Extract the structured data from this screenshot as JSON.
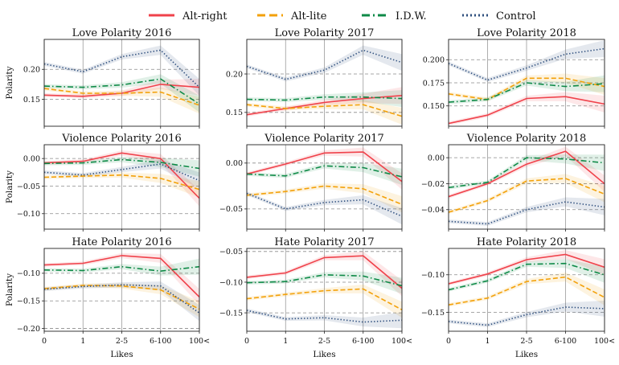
{
  "legend": [
    {
      "name": "Alt-right",
      "color": "#f0424b",
      "dash": "solid"
    },
    {
      "name": "Alt-lite",
      "color": "#f3a10a",
      "dash": "dashed"
    },
    {
      "name": "I.D.W.",
      "color": "#0e8a47",
      "dash": "dashdot"
    },
    {
      "name": "Control",
      "color": "#2e4f7e",
      "dash": "dotted"
    }
  ],
  "grid": "horizontal dashed at y ticks, vertical solid at x ticks",
  "chart_data": [
    {
      "type": "line",
      "title": "Love Polarity 2016",
      "ylabel": "Polarity",
      "xlabel": "",
      "categories": [
        "0",
        "1",
        "2-5",
        "6-100",
        "100<"
      ],
      "ylim": [
        0.105,
        0.25
      ],
      "yticks": [
        0.15,
        0.2
      ],
      "ytick_labels": [
        "0.15",
        "0.20"
      ],
      "series": [
        {
          "name": "Alt-right",
          "values": [
            0.157,
            0.155,
            0.16,
            0.175,
            0.17
          ]
        },
        {
          "name": "Alt-lite",
          "values": [
            0.168,
            0.16,
            0.16,
            0.162,
            0.14
          ]
        },
        {
          "name": "I.D.W.",
          "values": [
            0.172,
            0.17,
            0.174,
            0.184,
            0.142
          ]
        },
        {
          "name": "Control",
          "values": [
            0.209,
            0.196,
            0.221,
            0.232,
            0.17
          ]
        }
      ]
    },
    {
      "type": "line",
      "title": "Love Polarity 2017",
      "ylabel": "",
      "xlabel": "",
      "categories": [
        "0",
        "1",
        "2-5",
        "6-100",
        "100<"
      ],
      "ylim": [
        0.132,
        0.245
      ],
      "yticks": [
        0.15,
        0.2
      ],
      "ytick_labels": [
        "0.15",
        "0.20"
      ],
      "series": [
        {
          "name": "Alt-right",
          "values": [
            0.147,
            0.155,
            0.163,
            0.168,
            0.172
          ]
        },
        {
          "name": "Alt-lite",
          "values": [
            0.16,
            0.155,
            0.158,
            0.16,
            0.145
          ]
        },
        {
          "name": "I.D.W.",
          "values": [
            0.167,
            0.166,
            0.17,
            0.17,
            0.168
          ]
        },
        {
          "name": "Control",
          "values": [
            0.21,
            0.193,
            0.205,
            0.231,
            0.215
          ]
        }
      ]
    },
    {
      "type": "line",
      "title": "Love Polarity 2018",
      "ylabel": "",
      "xlabel": "",
      "categories": [
        "0",
        "1",
        "2-5",
        "6-100",
        "100<"
      ],
      "ylim": [
        0.128,
        0.222
      ],
      "yticks": [
        0.15,
        0.175,
        0.2
      ],
      "ytick_labels": [
        "0.150",
        "0.175",
        "0.200"
      ],
      "series": [
        {
          "name": "Alt-right",
          "values": [
            0.131,
            0.14,
            0.158,
            0.16,
            0.152
          ]
        },
        {
          "name": "Alt-lite",
          "values": [
            0.163,
            0.157,
            0.18,
            0.18,
            0.171
          ]
        },
        {
          "name": "I.D.W.",
          "values": [
            0.154,
            0.157,
            0.175,
            0.171,
            0.174
          ]
        },
        {
          "name": "Control",
          "values": [
            0.196,
            0.178,
            0.191,
            0.206,
            0.212
          ]
        }
      ]
    },
    {
      "type": "line",
      "title": "Violence Polarity 2016",
      "ylabel": "Polarity",
      "xlabel": "",
      "categories": [
        "0",
        "1",
        "2-5",
        "6-100",
        "100<"
      ],
      "ylim": [
        -0.128,
        0.025
      ],
      "yticks": [
        -0.1,
        -0.05,
        0.0
      ],
      "ytick_labels": [
        "−0.10",
        "−0.05",
        "0.00"
      ],
      "series": [
        {
          "name": "Alt-right",
          "values": [
            -0.008,
            -0.005,
            0.01,
            0.0,
            -0.072
          ]
        },
        {
          "name": "Alt-lite",
          "values": [
            -0.034,
            -0.032,
            -0.03,
            -0.036,
            -0.056
          ]
        },
        {
          "name": "I.D.W.",
          "values": [
            -0.009,
            -0.008,
            -0.002,
            -0.007,
            -0.018
          ]
        },
        {
          "name": "Control",
          "values": [
            -0.025,
            -0.03,
            -0.02,
            -0.01,
            -0.04
          ]
        }
      ]
    },
    {
      "type": "line",
      "title": "Violence Polarity 2017",
      "ylabel": "",
      "xlabel": "",
      "categories": [
        "0",
        "1",
        "2-5",
        "6-100",
        "100<"
      ],
      "ylim": [
        -0.072,
        0.02
      ],
      "yticks": [
        -0.05,
        0.0
      ],
      "ytick_labels": [
        "−0.05",
        "0.00"
      ],
      "series": [
        {
          "name": "Alt-right",
          "values": [
            -0.012,
            -0.001,
            0.011,
            0.012,
            -0.02
          ]
        },
        {
          "name": "Alt-lite",
          "values": [
            -0.035,
            -0.031,
            -0.025,
            -0.028,
            -0.045
          ]
        },
        {
          "name": "I.D.W.",
          "values": [
            -0.012,
            -0.014,
            -0.003,
            -0.005,
            -0.015
          ]
        },
        {
          "name": "Control",
          "values": [
            -0.033,
            -0.05,
            -0.043,
            -0.04,
            -0.058
          ]
        }
      ]
    },
    {
      "type": "line",
      "title": "Violence Polarity 2018",
      "ylabel": "",
      "xlabel": "",
      "categories": [
        "0",
        "1",
        "2-5",
        "6-100",
        "100<"
      ],
      "ylim": [
        -0.055,
        0.01
      ],
      "yticks": [
        -0.04,
        -0.02,
        0.0
      ],
      "ytick_labels": [
        "−0.04",
        "−0.02",
        "0.00"
      ],
      "series": [
        {
          "name": "Alt-right",
          "values": [
            -0.03,
            -0.02,
            -0.005,
            0.005,
            -0.02
          ]
        },
        {
          "name": "Alt-lite",
          "values": [
            -0.042,
            -0.033,
            -0.018,
            -0.016,
            -0.028
          ]
        },
        {
          "name": "I.D.W.",
          "values": [
            -0.023,
            -0.019,
            0.0,
            -0.001,
            -0.004
          ]
        },
        {
          "name": "Control",
          "values": [
            -0.049,
            -0.051,
            -0.04,
            -0.034,
            -0.038
          ]
        }
      ]
    },
    {
      "type": "line",
      "title": "Hate Polarity 2016",
      "ylabel": "Polarity",
      "xlabel": "Likes",
      "categories": [
        "0",
        "1",
        "2-5",
        "6-100",
        "100<"
      ],
      "ylim": [
        -0.205,
        -0.055
      ],
      "yticks": [
        -0.2,
        -0.15,
        -0.1
      ],
      "ytick_labels": [
        "−0.20",
        "−0.15",
        "−0.10"
      ],
      "series": [
        {
          "name": "Alt-right",
          "values": [
            -0.085,
            -0.082,
            -0.068,
            -0.073,
            -0.143
          ]
        },
        {
          "name": "Alt-lite",
          "values": [
            -0.128,
            -0.122,
            -0.123,
            -0.13,
            -0.165
          ]
        },
        {
          "name": "I.D.W.",
          "values": [
            -0.094,
            -0.095,
            -0.088,
            -0.096,
            -0.088
          ]
        },
        {
          "name": "Control",
          "values": [
            -0.129,
            -0.124,
            -0.121,
            -0.123,
            -0.172
          ]
        }
      ]
    },
    {
      "type": "line",
      "title": "Hate Polarity 2017",
      "ylabel": "",
      "xlabel": "Likes",
      "categories": [
        "0",
        "1",
        "2-5",
        "6-100",
        "100<"
      ],
      "ylim": [
        -0.18,
        -0.045
      ],
      "yticks": [
        -0.15,
        -0.1,
        -0.05
      ],
      "ytick_labels": [
        "−0.15",
        "−0.10",
        "−0.05"
      ],
      "series": [
        {
          "name": "Alt-right",
          "values": [
            -0.092,
            -0.085,
            -0.06,
            -0.057,
            -0.11
          ]
        },
        {
          "name": "Alt-lite",
          "values": [
            -0.127,
            -0.12,
            -0.114,
            -0.111,
            -0.145
          ]
        },
        {
          "name": "I.D.W.",
          "values": [
            -0.101,
            -0.099,
            -0.088,
            -0.09,
            -0.106
          ]
        },
        {
          "name": "Control",
          "values": [
            -0.146,
            -0.16,
            -0.158,
            -0.165,
            -0.162
          ]
        }
      ]
    },
    {
      "type": "line",
      "title": "Hate Polarity 2018",
      "ylabel": "",
      "xlabel": "Likes",
      "categories": [
        "0",
        "1",
        "2-5",
        "6-100",
        "100<"
      ],
      "ylim": [
        -0.175,
        -0.065
      ],
      "yticks": [
        -0.15,
        -0.1
      ],
      "ytick_labels": [
        "−0.15",
        "−0.10"
      ],
      "series": [
        {
          "name": "Alt-right",
          "values": [
            -0.112,
            -0.099,
            -0.08,
            -0.073,
            -0.09
          ]
        },
        {
          "name": "Alt-lite",
          "values": [
            -0.14,
            -0.131,
            -0.109,
            -0.103,
            -0.13
          ]
        },
        {
          "name": "I.D.W.",
          "values": [
            -0.12,
            -0.108,
            -0.086,
            -0.085,
            -0.1
          ]
        },
        {
          "name": "Control",
          "values": [
            -0.162,
            -0.167,
            -0.153,
            -0.143,
            -0.145
          ]
        }
      ]
    }
  ]
}
